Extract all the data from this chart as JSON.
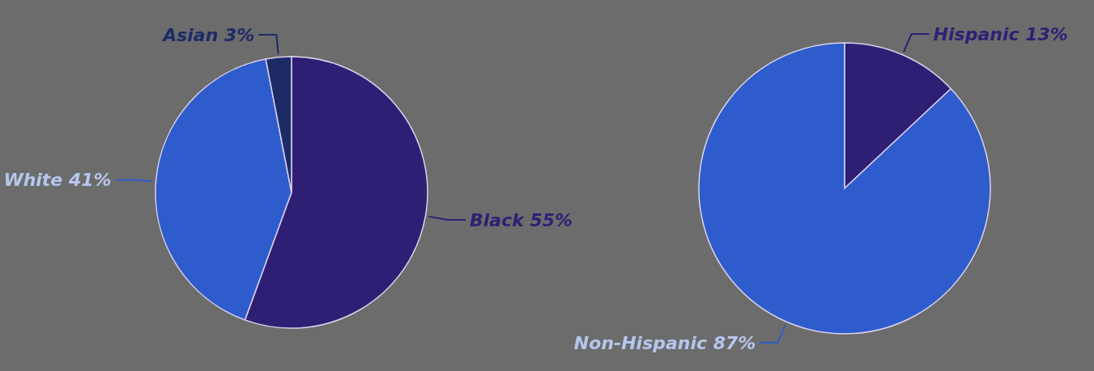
{
  "chart_data": [
    {
      "type": "pie",
      "categories": [
        "Black",
        "White",
        "Asian"
      ],
      "values": [
        55,
        41,
        3
      ],
      "value_labels": [
        "55%",
        "41%",
        "3%"
      ],
      "colors": [
        "#2f1f74",
        "#2f5ccc",
        "#1c2a66"
      ]
    },
    {
      "type": "pie",
      "categories": [
        "Hispanic",
        "Non-Hispanic"
      ],
      "values": [
        13,
        87
      ],
      "value_labels": [
        "13%",
        "87%"
      ],
      "colors": [
        "#2f1f74",
        "#2f5ccc"
      ]
    }
  ]
}
